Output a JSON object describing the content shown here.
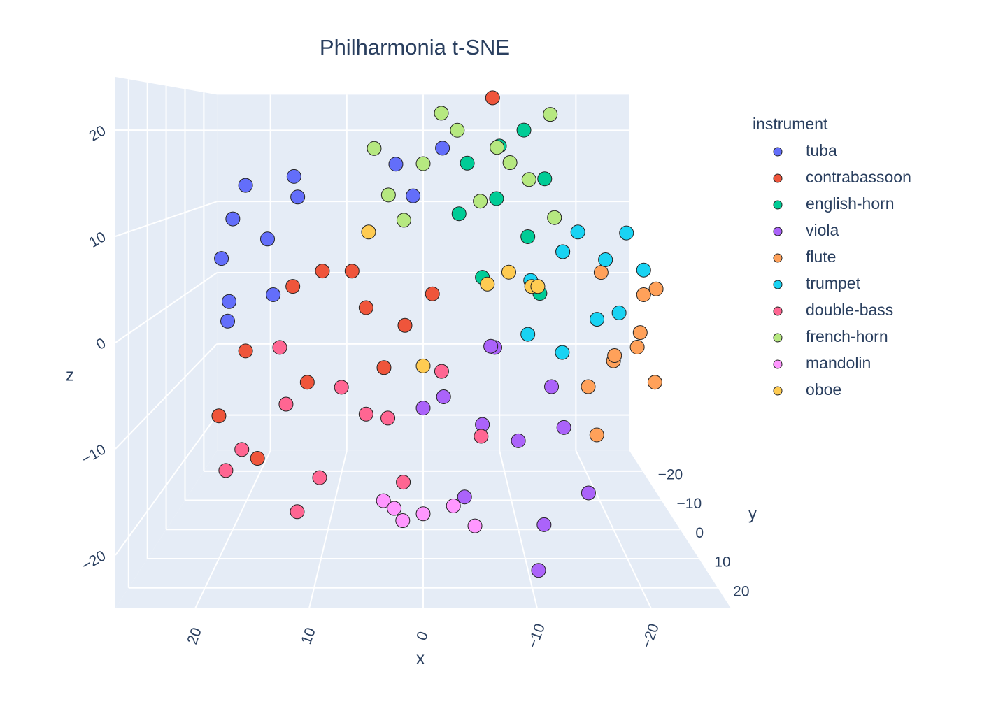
{
  "chart_data": {
    "type": "scatter3d",
    "title": "Philharmonia t-SNE",
    "x_label": "x",
    "y_label": "y",
    "z_label": "z",
    "legend_title": "instrument",
    "xlim": [
      -27,
      27
    ],
    "ylim": [
      -27,
      27
    ],
    "zlim": [
      -25,
      25
    ],
    "xticks": [
      20,
      10,
      0,
      {
        "value": -10,
        "label": "−10"
      },
      {
        "value": -20,
        "label": "−20"
      }
    ],
    "yticks": [
      {
        "value": -20,
        "label": "−20"
      },
      {
        "value": -10,
        "label": "−10"
      },
      0,
      10,
      20
    ],
    "zticks": [
      {
        "value": -20,
        "label": "−20"
      },
      {
        "value": -10,
        "label": "−10"
      },
      0,
      10,
      20
    ],
    "series": [
      {
        "name": "tuba",
        "color": "#636efa",
        "x": [
          20,
          18,
          22,
          16,
          14,
          19,
          21,
          13,
          17,
          3,
          -2,
          1
        ],
        "y": [
          0,
          5,
          -5,
          3,
          -8,
          10,
          -3,
          6,
          -10,
          -6,
          2,
          8
        ],
        "z": [
          10,
          14,
          5,
          8,
          12,
          2,
          -2,
          15,
          0,
          16,
          18,
          13
        ]
      },
      {
        "name": "contrabassoon",
        "color": "#EF553B",
        "x": [
          18,
          14,
          10,
          6,
          2,
          20,
          12,
          8,
          4,
          16,
          -1,
          -8
        ],
        "y": [
          5,
          -3,
          8,
          0,
          -6,
          10,
          2,
          -9,
          4,
          12,
          -4,
          -12
        ],
        "z": [
          -4,
          2,
          5,
          0,
          -3,
          -10,
          -8,
          3,
          -6,
          -14,
          1,
          24
        ]
      },
      {
        "name": "english-horn",
        "color": "#00cc96",
        "x": [
          -5,
          -8,
          -11,
          -14,
          -6,
          -9,
          -12,
          -4,
          -15,
          -10
        ],
        "y": [
          -10,
          -5,
          0,
          -12,
          5,
          -15,
          3,
          -8,
          -3,
          8
        ],
        "z": [
          16,
          12,
          8,
          14,
          4,
          18,
          2,
          10,
          6,
          20
        ]
      },
      {
        "name": "viola",
        "color": "#ab63fa",
        "x": [
          -2,
          -6,
          -10,
          -14,
          -17,
          -4,
          -8,
          -12,
          -11,
          -15,
          0,
          -7
        ],
        "y": [
          10,
          5,
          0,
          -5,
          3,
          12,
          -8,
          8,
          14,
          -2,
          6,
          2
        ],
        "z": [
          -8,
          -12,
          -15,
          -10,
          -20,
          -18,
          -6,
          -22,
          -25,
          -14,
          -10,
          -4
        ]
      },
      {
        "name": "flute",
        "color": "#FFA15A",
        "x": [
          -18,
          -20,
          -22,
          -25,
          -17,
          -21,
          -24,
          -19,
          -23,
          -26
        ],
        "y": [
          -5,
          0,
          5,
          -10,
          10,
          -15,
          2,
          8,
          -3,
          -8
        ],
        "z": [
          -10,
          -6,
          -2,
          0,
          -12,
          2,
          -8,
          -4,
          -5,
          1
        ]
      },
      {
        "name": "trumpet",
        "color": "#19d3f3",
        "x": [
          -12,
          -15,
          -18,
          -21,
          -24,
          -14,
          -17,
          -20,
          -25,
          -11
        ],
        "y": [
          -8,
          -3,
          2,
          -12,
          -15,
          6,
          -6,
          4,
          -10,
          0
        ],
        "z": [
          2,
          6,
          -1,
          4,
          7,
          -4,
          8,
          0,
          3,
          -3
        ]
      },
      {
        "name": "double-bass",
        "color": "#FF6692",
        "x": [
          18,
          14,
          10,
          6,
          2,
          -2,
          -6,
          16,
          12,
          8,
          4,
          20
        ],
        "y": [
          8,
          4,
          12,
          0,
          6,
          -4,
          2,
          -8,
          14,
          10,
          -10,
          5
        ],
        "z": [
          -14,
          -10,
          -16,
          -12,
          -18,
          -8,
          -14,
          -6,
          -19,
          -7,
          -15,
          -17
        ]
      },
      {
        "name": "french-horn",
        "color": "#B6E880",
        "x": [
          4,
          0,
          -4,
          -8,
          -12,
          -15,
          2,
          -2,
          -6,
          -10,
          -14,
          5
        ],
        "y": [
          -12,
          -8,
          -14,
          -4,
          -10,
          -15,
          2,
          -6,
          0,
          -12,
          -2,
          4
        ],
        "z": [
          12,
          16,
          20,
          18,
          14,
          22,
          10,
          22,
          12,
          16,
          10,
          18
        ]
      },
      {
        "name": "mandolin",
        "color": "#FF97FF",
        "x": [
          4,
          2,
          0,
          -3,
          -5,
          3
        ],
        "y": [
          6,
          10,
          4,
          8,
          12,
          2
        ],
        "z": [
          -20,
          -21,
          -22,
          -20,
          -21,
          -22
        ]
      },
      {
        "name": "oboe",
        "color": "#FECB52",
        "x": [
          -7,
          -9,
          -11,
          -13,
          0,
          6
        ],
        "y": [
          -5,
          0,
          5,
          -10,
          3,
          -6
        ],
        "z": [
          2,
          4,
          3,
          1,
          -6,
          8
        ]
      }
    ]
  }
}
